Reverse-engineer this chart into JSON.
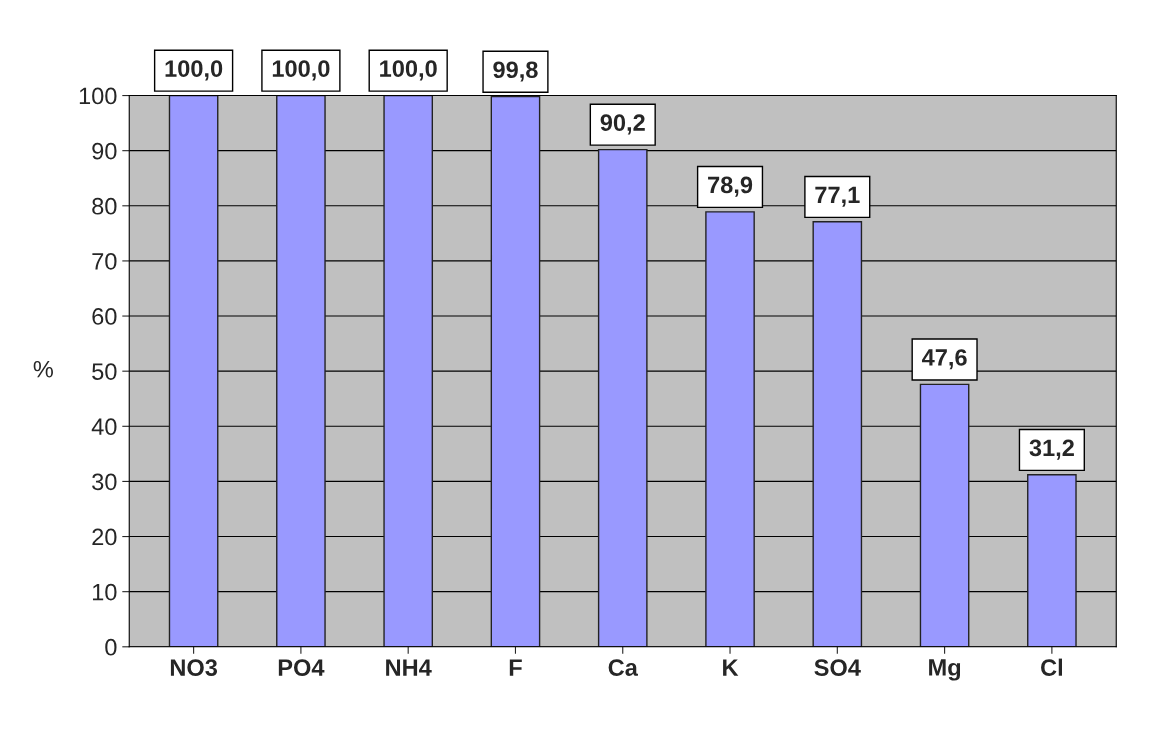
{
  "chart_data": {
    "type": "bar",
    "ylabel": "%",
    "categories": [
      "NO3",
      "PO4",
      "NH4",
      "F",
      "Ca",
      "K",
      "SO4",
      "Mg",
      "Cl"
    ],
    "values": [
      100.0,
      100.0,
      100.0,
      99.8,
      90.2,
      78.9,
      77.1,
      47.6,
      31.2
    ],
    "value_labels": [
      "100,0",
      "100,0",
      "100,0",
      "99,8",
      "90,2",
      "78,9",
      "77,1",
      "47,6",
      "31,2"
    ],
    "color": "#9999ff",
    "ylim": [
      0,
      100
    ],
    "yticks": [
      0,
      10,
      20,
      30,
      40,
      50,
      60,
      70,
      80,
      90,
      100
    ],
    "grid": "y"
  }
}
